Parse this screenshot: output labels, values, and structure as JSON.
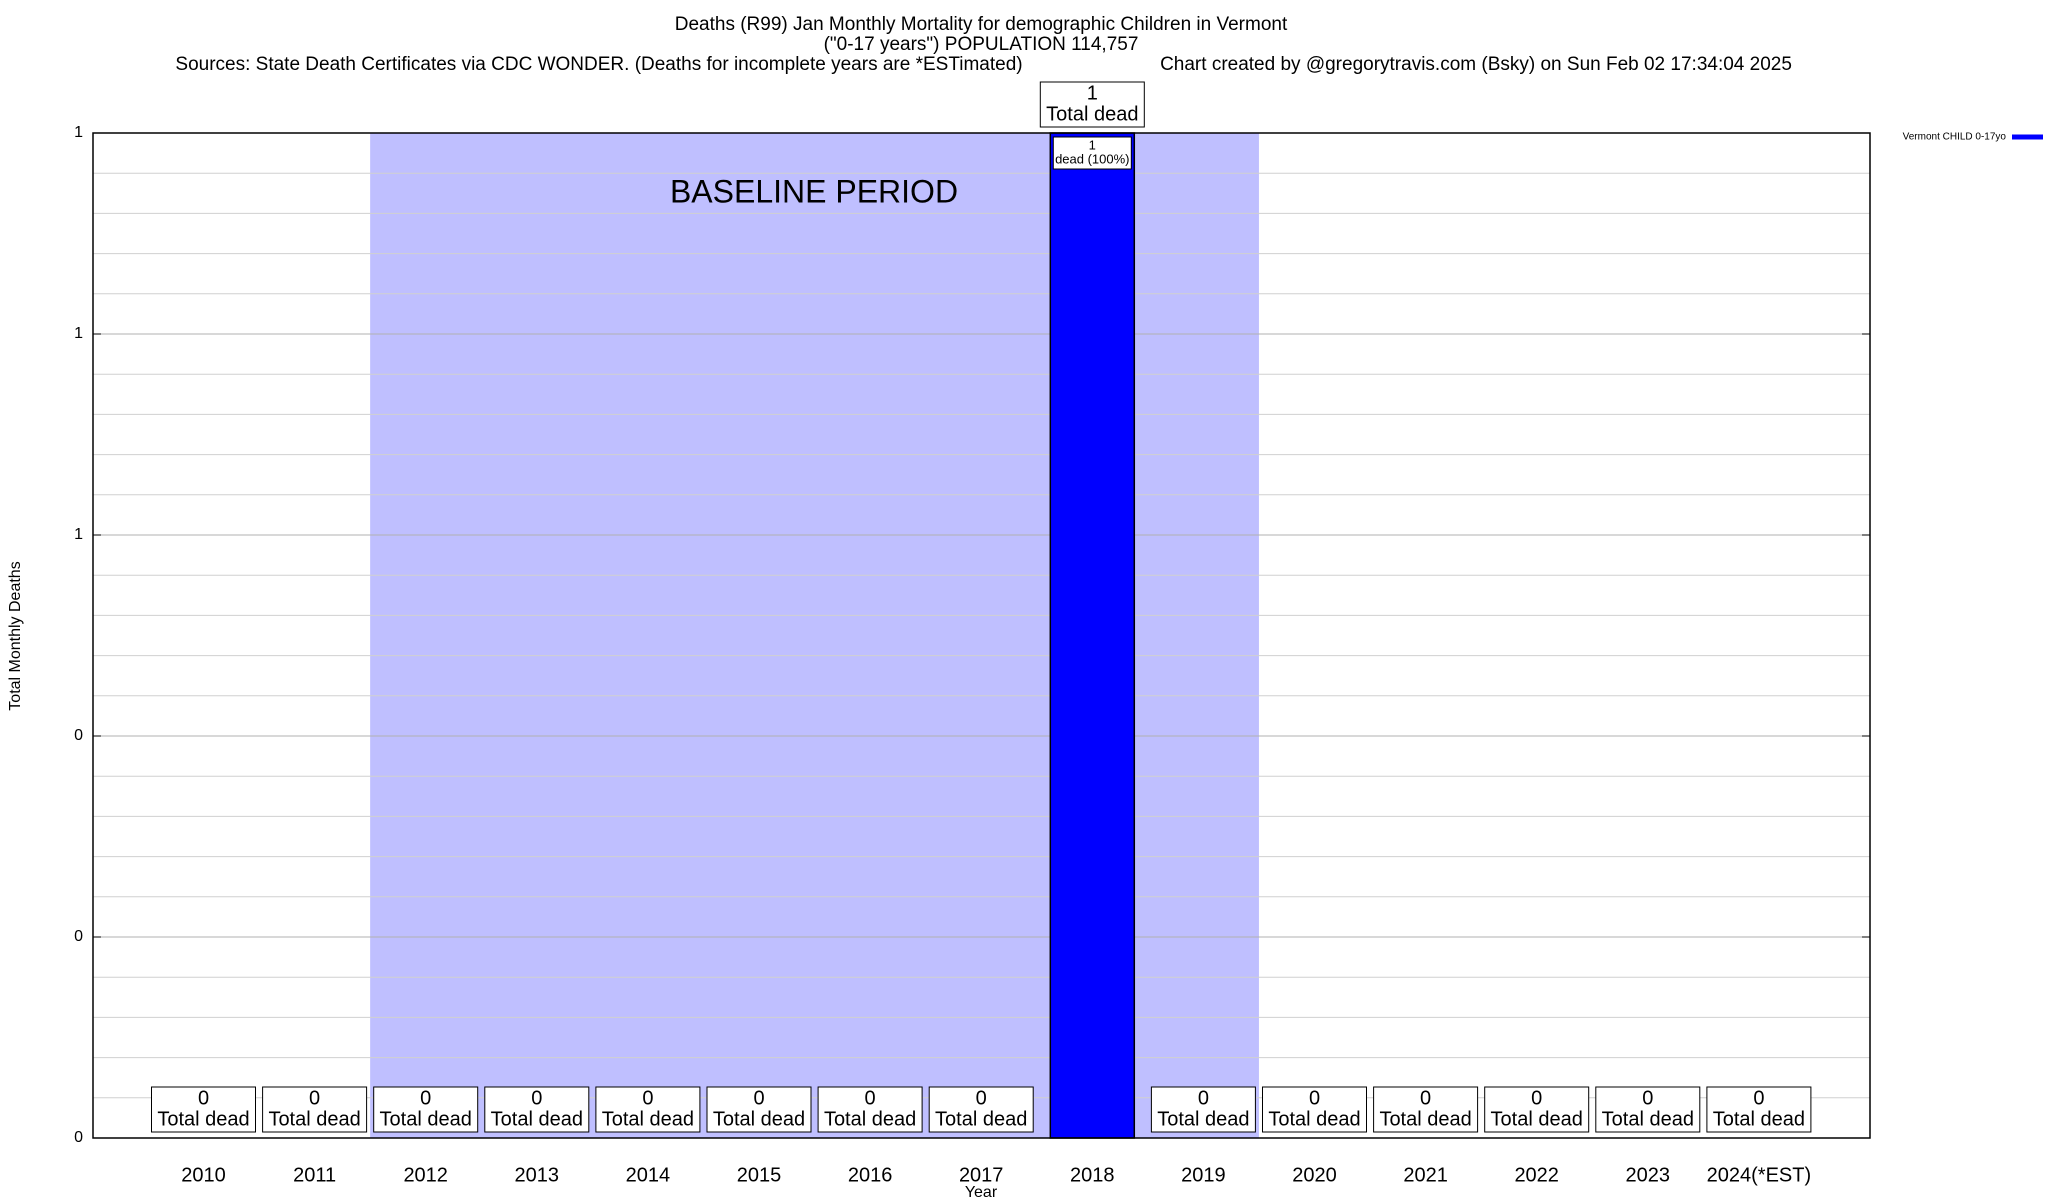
{
  "chart_data": {
    "type": "bar",
    "title": "Deaths (R99) Jan Monthly Mortality for demographic Children in Vermont",
    "subtitle": "(\"0-17 years\") POPULATION 114,757",
    "source": "Sources: State Death Certificates via CDC WONDER. (Deaths for incomplete years are *ESTimated)",
    "credit": "Chart created by @gregorytravis.com (Bsky) on Sun Feb 02 17:34:04 2025",
    "x_label": "Year",
    "y_label": "Total Monthly Deaths",
    "categories": [
      "2010",
      "2011",
      "2012",
      "2013",
      "2014",
      "2015",
      "2016",
      "2017",
      "2018",
      "2019",
      "2020",
      "2021",
      "2022",
      "2023",
      "2024(*EST)"
    ],
    "series": [
      {
        "name": "Vermont CHILD 0-17yo",
        "color": "#0000ff",
        "values": [
          0,
          0,
          0,
          0,
          0,
          0,
          0,
          0,
          1,
          0,
          0,
          0,
          0,
          0,
          0
        ]
      }
    ],
    "value_caption": "Total dead",
    "inner_labels": [
      null,
      null,
      null,
      null,
      null,
      null,
      null,
      null,
      "dead (100%)",
      null,
      null,
      null,
      null,
      null,
      null
    ],
    "baseline": {
      "label": "BASELINE PERIOD",
      "start": "2012",
      "end": "2019",
      "color": "#bfbfff"
    },
    "ylim": [
      0,
      1
    ],
    "yticks": [
      0,
      {
        "value": 0.2,
        "label": "0"
      },
      {
        "value": 0.4,
        "label": "0"
      },
      {
        "value": 0.6,
        "label": "1"
      },
      {
        "value": 0.8,
        "label": "1"
      },
      1
    ],
    "grid": true,
    "legend": "top-right"
  }
}
